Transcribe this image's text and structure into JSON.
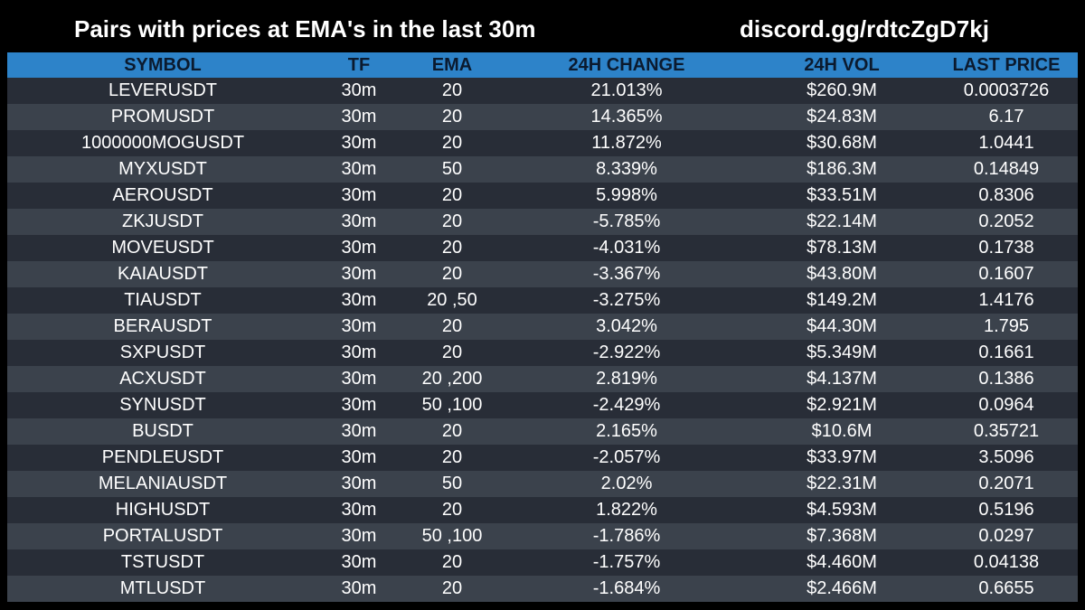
{
  "header": {
    "title": "Pairs with prices at EMA's in the last 30m",
    "discord": "discord.gg/rdtcZgD7kj"
  },
  "colors": {
    "background": "#000000",
    "header_bg": "#2d83c9",
    "header_text": "#0b1a2e",
    "row_dark": "#282d37",
    "row_light": "#3b424c",
    "text": "#ffffff"
  },
  "table": {
    "columns": [
      "SYMBOL",
      "TF",
      "EMA",
      "24H CHANGE",
      "24H VOL",
      "LAST PRICE"
    ],
    "rows": [
      [
        "LEVERUSDT",
        "30m",
        "20",
        "21.013%",
        "$260.9M",
        "0.0003726"
      ],
      [
        "PROMUSDT",
        "30m",
        "20",
        "14.365%",
        "$24.83M",
        "6.17"
      ],
      [
        "1000000MOGUSDT",
        "30m",
        "20",
        "11.872%",
        "$30.68M",
        "1.0441"
      ],
      [
        "MYXUSDT",
        "30m",
        "50",
        "8.339%",
        "$186.3M",
        "0.14849"
      ],
      [
        "AEROUSDT",
        "30m",
        "20",
        "5.998%",
        "$33.51M",
        "0.8306"
      ],
      [
        "ZKJUSDT",
        "30m",
        "20",
        "-5.785%",
        "$22.14M",
        "0.2052"
      ],
      [
        "MOVEUSDT",
        "30m",
        "20",
        "-4.031%",
        "$78.13M",
        "0.1738"
      ],
      [
        "KAIAUSDT",
        "30m",
        "20",
        "-3.367%",
        "$43.80M",
        "0.1607"
      ],
      [
        "TIAUSDT",
        "30m",
        "20 ,50",
        "-3.275%",
        "$149.2M",
        "1.4176"
      ],
      [
        "BERAUSDT",
        "30m",
        "20",
        "3.042%",
        "$44.30M",
        "1.795"
      ],
      [
        "SXPUSDT",
        "30m",
        "20",
        "-2.922%",
        "$5.349M",
        "0.1661"
      ],
      [
        "ACXUSDT",
        "30m",
        "20 ,200",
        "2.819%",
        "$4.137M",
        "0.1386"
      ],
      [
        "SYNUSDT",
        "30m",
        "50 ,100",
        "-2.429%",
        "$2.921M",
        "0.0964"
      ],
      [
        "BUSDT",
        "30m",
        "20",
        "2.165%",
        "$10.6M",
        "0.35721"
      ],
      [
        "PENDLEUSDT",
        "30m",
        "20",
        "-2.057%",
        "$33.97M",
        "3.5096"
      ],
      [
        "MELANIAUSDT",
        "30m",
        "50",
        "2.02%",
        "$22.31M",
        "0.2071"
      ],
      [
        "HIGHUSDT",
        "30m",
        "20",
        "1.822%",
        "$4.593M",
        "0.5196"
      ],
      [
        "PORTALUSDT",
        "30m",
        "50 ,100",
        "-1.786%",
        "$7.368M",
        "0.0297"
      ],
      [
        "TSTUSDT",
        "30m",
        "20",
        "-1.757%",
        "$4.460M",
        "0.04138"
      ],
      [
        "MTLUSDT",
        "30m",
        "20",
        "-1.684%",
        "$2.466M",
        "0.6655"
      ]
    ]
  }
}
